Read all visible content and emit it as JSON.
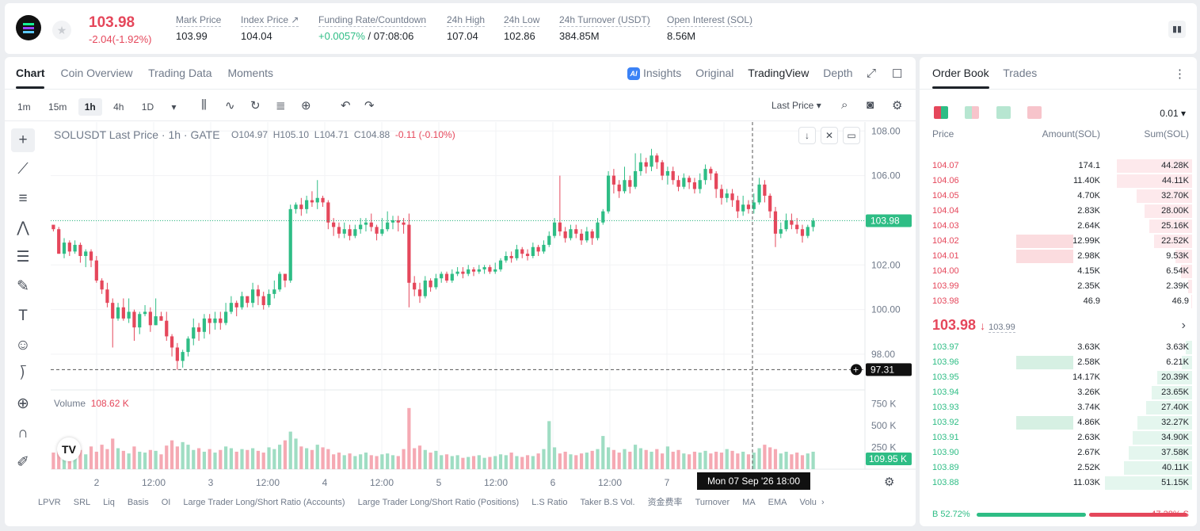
{
  "header": {
    "price": "103.98",
    "change": "-2.04(-1.92%)",
    "stats": [
      {
        "label": "Mark Price",
        "value": "103.99"
      },
      {
        "label": "Index Price ↗",
        "value": "104.04"
      },
      {
        "label": "Funding Rate/Countdown",
        "value_green": "+0.0057%",
        "value": "/ 07:08:06"
      },
      {
        "label": "24h High",
        "value": "107.04"
      },
      {
        "label": "24h Low",
        "value": "102.86"
      },
      {
        "label": "24h Turnover (USDT)",
        "value": "384.85M"
      },
      {
        "label": "Open Interest (SOL)",
        "value": "8.56M"
      }
    ]
  },
  "tabs": [
    "Chart",
    "Coin Overview",
    "Trading Data",
    "Moments"
  ],
  "view_tabs": {
    "insights": "Insights",
    "original": "Original",
    "tradingview": "TradingView",
    "depth": "Depth",
    "ai_badge": "AI"
  },
  "intervals": [
    "1m",
    "15m",
    "1h",
    "4h",
    "1D"
  ],
  "last_price_select": "Last Price",
  "chart_title": {
    "symbol": "SOLUSDT Last Price · 1h · GATE",
    "o": "O104.97",
    "h": "H105.10",
    "l": "L104.71",
    "c": "C104.88",
    "chg": "-0.11  (-0.10%)"
  },
  "volume": {
    "label": "Volume",
    "value": "108.62 K"
  },
  "colors": {
    "up": "#2ebd85",
    "down": "#e5475b",
    "bg": "#ffffff"
  },
  "chart_data": {
    "type": "candlestick",
    "y_ticks": [
      "108.00",
      "106.00",
      "104.00",
      "102.00",
      "100.00",
      "98.00"
    ],
    "ylim": [
      96.4,
      108.4
    ],
    "vol_ticks": [
      "750 K",
      "500 K",
      "250 K"
    ],
    "vol_max": 780,
    "x_ticks": [
      "2",
      "12:00",
      "3",
      "12:00",
      "4",
      "12:00",
      "5",
      "12:00",
      "6",
      "12:00",
      "7",
      "12:00"
    ],
    "last_price_tag": "103.98",
    "crosshair_price_tag": "97.31",
    "crosshair_time_tag": "Mon 07 Sep '26    18:00",
    "volume_tag": "109.95 K",
    "candles": [
      [
        103.8,
        103.6,
        103.5,
        103.7
      ],
      [
        103.6,
        102.5,
        102.5,
        103.7
      ],
      [
        102.5,
        103.0,
        102.3,
        103.2
      ],
      [
        103.0,
        102.6,
        102.4,
        103.1
      ],
      [
        102.6,
        102.9,
        102.5,
        103.1
      ],
      [
        102.9,
        102.4,
        102.1,
        103.0
      ],
      [
        102.4,
        102.6,
        101.9,
        102.7
      ],
      [
        102.6,
        102.2,
        101.9,
        102.7
      ],
      [
        102.2,
        101.3,
        101.2,
        102.4
      ],
      [
        101.3,
        100.9,
        100.7,
        101.4
      ],
      [
        100.9,
        100.3,
        100.1,
        101.2
      ],
      [
        100.3,
        99.6,
        98.3,
        100.5
      ],
      [
        99.6,
        100.1,
        99.5,
        100.3
      ],
      [
        100.1,
        99.6,
        99.5,
        100.5
      ],
      [
        99.6,
        99.9,
        99.4,
        100.5
      ],
      [
        99.9,
        99.2,
        98.6,
        100.0
      ],
      [
        99.2,
        99.8,
        98.9,
        99.9
      ],
      [
        99.8,
        99.9,
        99.7,
        100.2
      ],
      [
        99.9,
        99.3,
        99.0,
        100.1
      ],
      [
        99.3,
        99.7,
        99.3,
        100.5
      ],
      [
        99.7,
        99.5,
        99.5,
        99.9
      ],
      [
        99.5,
        98.8,
        98.6,
        99.9
      ],
      [
        98.8,
        98.3,
        97.9,
        98.9
      ],
      [
        98.3,
        97.7,
        97.3,
        98.5
      ],
      [
        97.7,
        98.1,
        97.4,
        98.2
      ],
      [
        98.1,
        98.7,
        97.9,
        98.8
      ],
      [
        98.7,
        99.2,
        98.4,
        99.6
      ],
      [
        99.2,
        99.0,
        98.6,
        99.4
      ],
      [
        99.0,
        99.6,
        98.7,
        99.8
      ],
      [
        99.6,
        99.4,
        98.9,
        99.8
      ],
      [
        99.4,
        99.6,
        99.1,
        99.9
      ],
      [
        99.6,
        99.4,
        99.1,
        99.9
      ],
      [
        99.4,
        99.9,
        99.3,
        100.3
      ],
      [
        99.9,
        100.3,
        99.8,
        100.6
      ],
      [
        100.3,
        100.1,
        99.7,
        100.4
      ],
      [
        100.1,
        100.6,
        100.0,
        100.8
      ],
      [
        100.6,
        100.3,
        100.1,
        100.6
      ],
      [
        100.3,
        100.9,
        100.1,
        101.2
      ],
      [
        100.9,
        100.6,
        100.2,
        101.1
      ],
      [
        100.6,
        100.2,
        100.0,
        100.8
      ],
      [
        100.2,
        100.7,
        100.1,
        100.9
      ],
      [
        100.7,
        100.9,
        100.5,
        101.3
      ],
      [
        100.9,
        101.6,
        100.8,
        101.7
      ],
      [
        101.6,
        101.3,
        101.0,
        101.6
      ],
      [
        101.3,
        104.5,
        101.2,
        104.7
      ],
      [
        104.5,
        104.7,
        104.3,
        104.8
      ],
      [
        104.7,
        104.5,
        104.2,
        105.0
      ],
      [
        104.5,
        104.9,
        104.3,
        105.1
      ],
      [
        104.9,
        104.8,
        104.6,
        105.3
      ],
      [
        104.8,
        105.0,
        104.5,
        105.8
      ],
      [
        105.0,
        104.8,
        104.6,
        105.1
      ],
      [
        104.8,
        103.9,
        103.6,
        104.9
      ],
      [
        103.9,
        103.7,
        103.3,
        104.1
      ],
      [
        103.7,
        103.4,
        103.2,
        103.9
      ],
      [
        103.4,
        103.6,
        103.2,
        103.9
      ],
      [
        103.6,
        103.3,
        103.1,
        103.8
      ],
      [
        103.3,
        103.6,
        103.2,
        103.8
      ],
      [
        103.6,
        103.8,
        103.4,
        104.1
      ],
      [
        103.8,
        103.9,
        103.5,
        104.1
      ],
      [
        103.9,
        103.7,
        103.5,
        104.3
      ],
      [
        103.7,
        103.4,
        103.1,
        103.8
      ],
      [
        103.4,
        103.6,
        103.3,
        104.1
      ],
      [
        103.6,
        103.9,
        103.5,
        104.4
      ],
      [
        103.9,
        104.0,
        103.6,
        104.2
      ],
      [
        104.0,
        103.9,
        103.5,
        104.2
      ],
      [
        103.9,
        103.8,
        103.4,
        104.1
      ],
      [
        103.8,
        101.2,
        100.1,
        104.3
      ],
      [
        101.2,
        100.9,
        100.6,
        101.5
      ],
      [
        100.9,
        100.6,
        100.3,
        101.2
      ],
      [
        100.6,
        101.3,
        100.5,
        101.5
      ],
      [
        101.3,
        101.0,
        100.8,
        101.4
      ],
      [
        101.0,
        101.4,
        100.9,
        101.6
      ],
      [
        101.4,
        101.6,
        101.2,
        101.7
      ],
      [
        101.6,
        101.3,
        101.2,
        101.7
      ],
      [
        101.3,
        101.6,
        101.2,
        101.8
      ],
      [
        101.6,
        101.7,
        101.5,
        101.9
      ],
      [
        101.7,
        101.6,
        101.4,
        101.9
      ],
      [
        101.6,
        101.8,
        101.5,
        102.0
      ],
      [
        101.8,
        101.7,
        101.5,
        101.9
      ],
      [
        101.7,
        101.8,
        101.6,
        102.0
      ],
      [
        101.8,
        101.9,
        101.6,
        102.0
      ],
      [
        101.9,
        101.7,
        101.6,
        102.0
      ],
      [
        101.7,
        101.8,
        101.6,
        102.1
      ],
      [
        101.8,
        102.2,
        101.7,
        102.3
      ],
      [
        102.2,
        102.4,
        102.1,
        102.6
      ],
      [
        102.4,
        102.3,
        102.1,
        102.6
      ],
      [
        102.3,
        102.7,
        102.2,
        102.9
      ],
      [
        102.7,
        102.5,
        102.3,
        102.8
      ],
      [
        102.5,
        102.4,
        102.2,
        102.7
      ],
      [
        102.4,
        102.8,
        102.3,
        103.0
      ],
      [
        102.8,
        102.6,
        102.4,
        102.9
      ],
      [
        102.6,
        102.9,
        102.5,
        103.1
      ],
      [
        102.9,
        103.3,
        102.8,
        103.5
      ],
      [
        103.3,
        103.9,
        103.2,
        104.1
      ],
      [
        103.9,
        103.5,
        103.3,
        106.0
      ],
      [
        103.5,
        103.2,
        103.0,
        103.7
      ],
      [
        103.2,
        103.6,
        103.1,
        103.8
      ],
      [
        103.6,
        103.4,
        103.2,
        103.8
      ],
      [
        103.4,
        103.1,
        102.9,
        103.6
      ],
      [
        103.1,
        103.5,
        103.0,
        103.7
      ],
      [
        103.5,
        103.2,
        102.9,
        103.6
      ],
      [
        103.2,
        103.9,
        103.1,
        104.1
      ],
      [
        103.9,
        104.4,
        103.8,
        104.5
      ],
      [
        104.4,
        106.0,
        104.3,
        106.2
      ],
      [
        106.0,
        105.6,
        105.2,
        106.3
      ],
      [
        105.6,
        105.3,
        105.0,
        105.8
      ],
      [
        105.3,
        105.8,
        105.2,
        106.4
      ],
      [
        105.8,
        105.5,
        105.2,
        106.0
      ],
      [
        105.5,
        106.2,
        105.4,
        107.0
      ],
      [
        106.2,
        106.6,
        106.0,
        107.0
      ],
      [
        106.6,
        106.4,
        106.1,
        106.8
      ],
      [
        106.4,
        106.9,
        106.2,
        107.2
      ],
      [
        106.9,
        106.6,
        106.3,
        107.0
      ],
      [
        106.6,
        106.0,
        105.8,
        106.7
      ],
      [
        106.0,
        106.2,
        105.6,
        106.4
      ],
      [
        106.2,
        105.8,
        105.6,
        106.4
      ],
      [
        105.8,
        105.5,
        105.3,
        106.0
      ],
      [
        105.5,
        105.9,
        105.4,
        106.1
      ],
      [
        105.9,
        105.7,
        105.4,
        106.0
      ],
      [
        105.7,
        105.4,
        105.2,
        105.9
      ],
      [
        105.4,
        105.8,
        105.2,
        106.1
      ],
      [
        105.8,
        106.3,
        105.6,
        106.5
      ],
      [
        106.3,
        106.1,
        105.8,
        106.4
      ],
      [
        106.1,
        105.4,
        105.0,
        106.2
      ],
      [
        105.4,
        105.0,
        104.7,
        105.6
      ],
      [
        105.0,
        105.2,
        104.8,
        105.4
      ],
      [
        105.2,
        104.9,
        104.6,
        105.4
      ],
      [
        104.9,
        104.4,
        104.1,
        105.1
      ],
      [
        104.4,
        104.7,
        104.2,
        105.1
      ],
      [
        104.7,
        104.5,
        104.3,
        104.9
      ],
      [
        104.5,
        104.8,
        104.3,
        105.2
      ],
      [
        104.8,
        105.6,
        104.7,
        105.9
      ],
      [
        105.6,
        105.1,
        104.8,
        105.8
      ],
      [
        105.1,
        104.4,
        104.1,
        105.2
      ],
      [
        104.4,
        103.4,
        102.8,
        104.6
      ],
      [
        103.4,
        103.6,
        103.2,
        103.9
      ],
      [
        103.6,
        104.0,
        103.5,
        104.3
      ],
      [
        104.0,
        103.8,
        103.6,
        104.3
      ],
      [
        103.8,
        103.6,
        103.4,
        104.1
      ],
      [
        103.6,
        103.3,
        103.0,
        103.8
      ],
      [
        103.3,
        103.7,
        103.2,
        103.8
      ],
      [
        103.7,
        103.98,
        103.5,
        104.1
      ]
    ],
    "volumes": [
      190,
      210,
      200,
      240,
      180,
      220,
      170,
      260,
      200,
      280,
      230,
      350,
      240,
      210,
      180,
      260,
      200,
      190,
      220,
      210,
      170,
      270,
      330,
      260,
      310,
      280,
      220,
      240,
      200,
      230,
      190,
      220,
      260,
      240,
      200,
      230,
      220,
      240,
      210,
      190,
      250,
      230,
      280,
      330,
      430,
      350,
      260,
      240,
      220,
      280,
      250,
      230,
      170,
      190,
      160,
      180,
      150,
      170,
      190,
      160,
      150,
      170,
      180,
      160,
      150,
      230,
      700,
      240,
      270,
      220,
      190,
      210,
      160,
      170,
      150,
      160,
      130,
      140,
      150,
      160,
      130,
      140,
      150,
      170,
      160,
      190,
      150,
      140,
      160,
      150,
      180,
      230,
      550,
      250,
      180,
      200,
      170,
      160,
      180,
      190,
      210,
      230,
      380,
      250,
      220,
      190,
      230,
      200,
      280,
      240,
      220,
      200,
      230,
      180,
      260,
      200,
      220,
      180,
      170,
      200,
      190,
      210,
      180,
      200,
      190,
      230,
      210,
      180,
      200,
      170,
      190,
      240,
      280,
      250,
      230,
      180,
      200,
      170,
      190,
      160,
      180,
      200
    ]
  },
  "indicators": [
    "LPVR",
    "SRL",
    "Liq",
    "Basis",
    "OI",
    "Large Trader Long/Short Ratio (Accounts)",
    "Large Trader Long/Short Ratio (Positions)",
    "L.S Ratio",
    "Taker B.S Vol.",
    "资金费率",
    "Turnover",
    "MA",
    "EMA",
    "Volu"
  ],
  "orderbook": {
    "tabs": [
      "Order Book",
      "Trades"
    ],
    "precision": "0.01",
    "headers": {
      "price": "Price",
      "amount": "Amount(SOL)",
      "sum": "Sum(SOL)"
    },
    "asks": [
      {
        "price": "104.07",
        "amount": "174.1",
        "sum": "44.28K",
        "depth": 0.86,
        "amt_share": 0
      },
      {
        "price": "104.06",
        "amount": "11.40K",
        "sum": "44.11K",
        "depth": 0.86,
        "amt_share": 0
      },
      {
        "price": "104.05",
        "amount": "4.70K",
        "sum": "32.70K",
        "depth": 0.64,
        "amt_share": 0
      },
      {
        "price": "104.04",
        "amount": "2.83K",
        "sum": "28.00K",
        "depth": 0.55,
        "amt_share": 0
      },
      {
        "price": "104.03",
        "amount": "2.64K",
        "sum": "25.16K",
        "depth": 0.49,
        "amt_share": 0
      },
      {
        "price": "104.02",
        "amount": "12.99K",
        "sum": "22.52K",
        "depth": 0.44,
        "amt_share": 0.72
      },
      {
        "price": "104.01",
        "amount": "2.98K",
        "sum": "9.53K",
        "depth": 0.19,
        "amt_share": 0.72
      },
      {
        "price": "104.00",
        "amount": "4.15K",
        "sum": "6.54K",
        "depth": 0.13,
        "amt_share": 0
      },
      {
        "price": "103.99",
        "amount": "2.35K",
        "sum": "2.39K",
        "depth": 0.05,
        "amt_share": 0
      },
      {
        "price": "103.98",
        "amount": "46.9",
        "sum": "46.9",
        "depth": 0.01,
        "amt_share": 0
      }
    ],
    "last_price": "103.98",
    "last_arrow": "↓",
    "mark_price": "103.99",
    "bids": [
      {
        "price": "103.97",
        "amount": "3.63K",
        "sum": "3.63K",
        "depth": 0.07,
        "amt_share": 0
      },
      {
        "price": "103.96",
        "amount": "2.58K",
        "sum": "6.21K",
        "depth": 0.12,
        "amt_share": 0.72
      },
      {
        "price": "103.95",
        "amount": "14.17K",
        "sum": "20.39K",
        "depth": 0.4,
        "amt_share": 0
      },
      {
        "price": "103.94",
        "amount": "3.26K",
        "sum": "23.65K",
        "depth": 0.46,
        "amt_share": 0
      },
      {
        "price": "103.93",
        "amount": "3.74K",
        "sum": "27.40K",
        "depth": 0.53,
        "amt_share": 0
      },
      {
        "price": "103.92",
        "amount": "4.86K",
        "sum": "32.27K",
        "depth": 0.63,
        "amt_share": 0.72
      },
      {
        "price": "103.91",
        "amount": "2.63K",
        "sum": "34.90K",
        "depth": 0.68,
        "amt_share": 0
      },
      {
        "price": "103.90",
        "amount": "2.67K",
        "sum": "37.58K",
        "depth": 0.73,
        "amt_share": 0
      },
      {
        "price": "103.89",
        "amount": "2.52K",
        "sum": "40.11K",
        "depth": 0.78,
        "amt_share": 0
      },
      {
        "price": "103.88",
        "amount": "11.03K",
        "sum": "51.15K",
        "depth": 1.0,
        "amt_share": 0
      }
    ],
    "buy_label": "B 52.72%",
    "sell_label": "47.28% S",
    "buy_ratio": 0.5272
  }
}
